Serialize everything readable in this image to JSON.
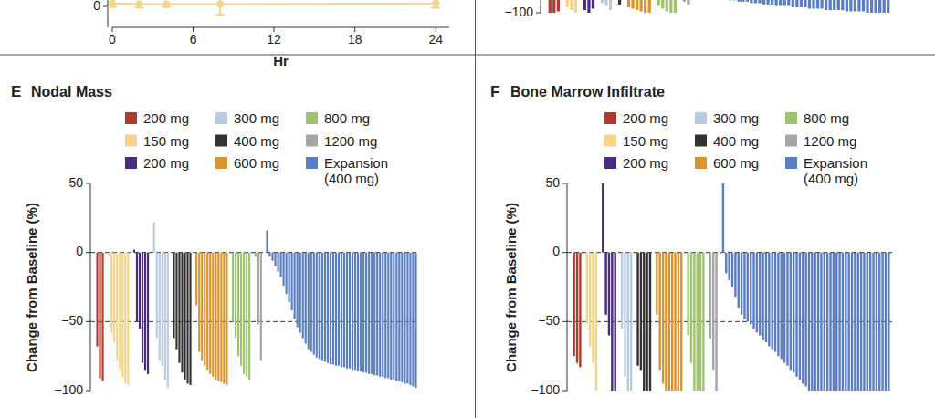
{
  "chart_data": [
    {
      "type": "line",
      "x_label": "Hr",
      "x": [
        0,
        2,
        4,
        8,
        24
      ],
      "xlim": [
        0,
        25
      ],
      "xticks": [
        0,
        6,
        12,
        18,
        24
      ],
      "ylim": [
        -0.3,
        1
      ],
      "yticks": [
        0
      ],
      "series": [
        {
          "color": "#f4d58d",
          "marker": "circle",
          "values": [
            0.04,
            0.03,
            0.03,
            0.03,
            0.04
          ],
          "errors": [
            0.05,
            0.05,
            0.04,
            0.15,
            0.06
          ]
        }
      ]
    },
    {
      "type": "bar",
      "ylim": [
        -100,
        50
      ],
      "yticks": [
        {
          "value": -100,
          "label": "−100"
        }
      ],
      "tick_labels": "y",
      "series": [
        {
          "color": "#b23a2e",
          "values": [
            -100,
            -100,
            -99
          ]
        },
        {
          "color": "#f5d488",
          "values": [
            -96,
            -98,
            -100
          ]
        },
        {
          "color": "#4a2c7f",
          "values": [
            -98,
            -100,
            -97
          ]
        },
        {
          "color": "#b8cce0",
          "values": [
            -93,
            -95,
            -98
          ]
        },
        {
          "color": "#333333",
          "values": [
            -94
          ]
        },
        {
          "color": "#d8952f",
          "values": [
            -96,
            -97,
            -98,
            -99,
            -100,
            -100
          ]
        },
        {
          "color": "#9dc46a",
          "values": [
            -95,
            -97,
            -99,
            -100,
            -100
          ]
        },
        {
          "color": "#a5a5a5",
          "values": [
            -92,
            -94
          ]
        },
        {
          "color": "#5b7ec0",
          "values": [
            -86,
            -87,
            -88,
            -88,
            -89,
            -89,
            -90,
            -90,
            -91,
            -91,
            -92,
            -92,
            -92,
            -93,
            -93,
            -93,
            -94,
            -94,
            -94,
            -95,
            -95,
            -95,
            -95,
            -96,
            -96,
            -96,
            -96,
            -97,
            -97,
            -97,
            -97,
            -98,
            -98,
            -98,
            -98,
            -98,
            -99,
            -99,
            -99,
            -99,
            -99,
            -100,
            -100,
            -100,
            -100,
            -100,
            -100
          ]
        }
      ]
    },
    {
      "type": "bar",
      "title": "Nodal Mass",
      "annotations": [
        "E"
      ],
      "y_label": "Change from Baseline (%)",
      "ylim": [
        -100,
        50
      ],
      "yticks": [
        50,
        0,
        {
          "value": -50,
          "label": "−50"
        },
        {
          "value": -100,
          "label": "−100"
        }
      ],
      "hlines": [
        0,
        -50
      ],
      "tick_labels": "y",
      "series": [
        {
          "name": "200 mg",
          "color": "#b23a2e",
          "values": [
            -68,
            -91,
            -93
          ]
        },
        {
          "name": "150 mg",
          "color": "#f5d488",
          "values": [
            -2,
            -58,
            -65,
            -78,
            -85,
            -90,
            -95,
            -96
          ]
        },
        {
          "name": "200 mg",
          "color": "#4a2c7f",
          "values": [
            2,
            -50,
            -55,
            -80,
            -85,
            -88
          ]
        },
        {
          "name": "300 mg",
          "color": "#b8cce0",
          "values": [
            22,
            -62,
            -78,
            -82,
            -92,
            -98
          ]
        },
        {
          "name": "400 mg",
          "color": "#333333",
          "values": [
            -62,
            -70,
            -80,
            -87,
            -92,
            -95,
            -96
          ]
        },
        {
          "name": "600 mg",
          "color": "#d8952f",
          "values": [
            -38,
            -72,
            -78,
            -82,
            -85,
            -88,
            -90,
            -92,
            -93,
            -94,
            -95,
            -96
          ]
        },
        {
          "name": "800 mg",
          "color": "#9dc46a",
          "values": [
            -50,
            -62,
            -75,
            -82,
            -88,
            -90,
            -92
          ]
        },
        {
          "name": "1200 mg",
          "color": "#a5a5a5",
          "values": [
            -3,
            -52,
            -78
          ]
        },
        {
          "name": "Expansion (400 mg)",
          "color": "#5b7ec0",
          "values": [
            16,
            -3,
            -6,
            -10,
            -14,
            -18,
            -24,
            -30,
            -36,
            -42,
            -48,
            -54,
            -58,
            -62,
            -66,
            -70,
            -72,
            -74,
            -76,
            -77,
            -78,
            -79,
            -80,
            -81,
            -81,
            -82,
            -82,
            -83,
            -83,
            -84,
            -84,
            -85,
            -85,
            -86,
            -86,
            -87,
            -87,
            -88,
            -88,
            -89,
            -89,
            -90,
            -90,
            -91,
            -91,
            -92,
            -92,
            -93,
            -93,
            -94,
            -95,
            -95,
            -96,
            -97,
            -98
          ]
        }
      ]
    },
    {
      "type": "bar",
      "title": "Bone Marrow Infiltrate",
      "annotations": [
        "F"
      ],
      "y_label": "Change from Baseline (%)",
      "ylim": [
        -100,
        50
      ],
      "yticks": [
        50,
        0,
        {
          "value": -50,
          "label": "−50"
        },
        {
          "value": -100,
          "label": "−100"
        }
      ],
      "hlines": [
        0,
        -50
      ],
      "tick_labels": "y",
      "series": [
        {
          "name": "200 mg",
          "color": "#b23a2e",
          "values": [
            -75,
            -80,
            -83
          ]
        },
        {
          "name": "150 mg",
          "color": "#f5d488",
          "values": [
            -52,
            -68,
            -80,
            -100
          ]
        },
        {
          "name": "200 mg",
          "color": "#4a2c7f",
          "values": [
            50,
            -45,
            -60,
            -100,
            -100
          ]
        },
        {
          "name": "300 mg",
          "color": "#b8cce0",
          "values": [
            -55,
            -90,
            -100,
            -100
          ]
        },
        {
          "name": "400 mg",
          "color": "#333333",
          "values": [
            -82,
            -85,
            -100,
            -100,
            -100
          ]
        },
        {
          "name": "600 mg",
          "color": "#d8952f",
          "values": [
            -45,
            -85,
            -95,
            -100,
            -100,
            -100,
            -100,
            -100,
            -100
          ]
        },
        {
          "name": "800 mg",
          "color": "#9dc46a",
          "values": [
            -60,
            -80,
            -100,
            -100,
            -100,
            -100
          ]
        },
        {
          "name": "1200 mg",
          "color": "#a5a5a5",
          "values": [
            -62,
            -85,
            -100
          ]
        },
        {
          "name": "Expansion (400 mg)",
          "color": "#5b7ec0",
          "values": [
            50,
            -15,
            -20,
            -25,
            -32,
            -40,
            -45,
            -48,
            -50,
            -52,
            -55,
            -58,
            -60,
            -63,
            -65,
            -68,
            -70,
            -72,
            -75,
            -77,
            -80,
            -82,
            -85,
            -87,
            -90,
            -92,
            -95,
            -97,
            -100,
            -100,
            -100,
            -100,
            -100,
            -100,
            -100,
            -100,
            -100,
            -100,
            -100,
            -100,
            -100,
            -100,
            -100,
            -100,
            -100,
            -100,
            -100,
            -100,
            -100,
            -100,
            -100,
            -100,
            -100,
            -100,
            -100
          ]
        }
      ]
    }
  ]
}
